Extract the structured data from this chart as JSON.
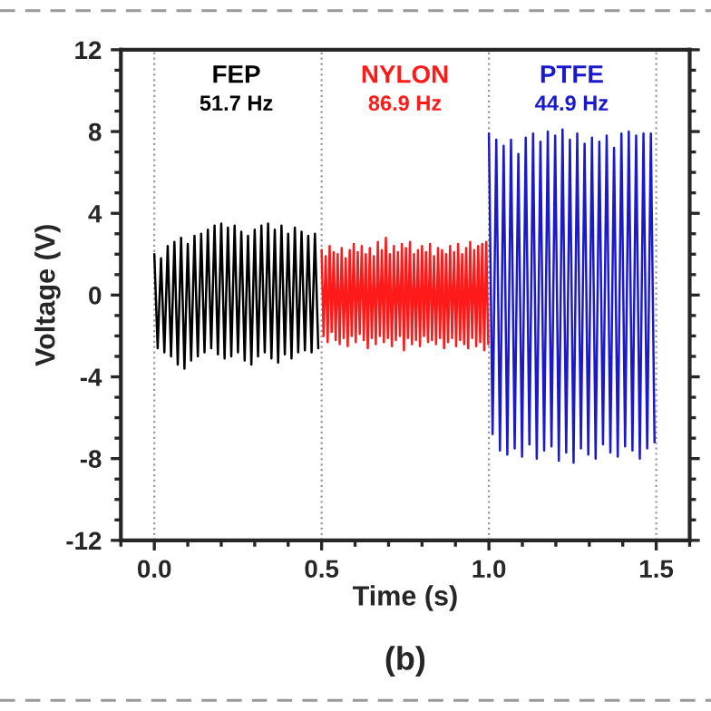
{
  "chart_data": {
    "type": "line",
    "xlabel": "Time (s)",
    "ylabel": "Voltage (V)",
    "xlim": [
      -0.1,
      1.6
    ],
    "xticks": [
      {
        "value": 0,
        "label": "0.0"
      },
      0.5,
      {
        "value": 1,
        "label": "1.0"
      },
      1.5
    ],
    "ylim": [
      -12,
      12
    ],
    "yticks": [
      -12,
      -8,
      -4,
      0,
      4,
      8,
      12
    ],
    "grid": "x",
    "legend": false,
    "line_style": "solid",
    "marker": "none",
    "annotations": [
      "51.7 Hz",
      "86.9 Hz",
      "44.9 Hz",
      "(b)"
    ],
    "series": [
      {
        "name": "FEP",
        "color": "#000000",
        "x": [
          0.0,
          0.01,
          0.02,
          0.03,
          0.04,
          0.05,
          0.06,
          0.07,
          0.08,
          0.09,
          0.1,
          0.11,
          0.12,
          0.13,
          0.14,
          0.15,
          0.16,
          0.17,
          0.18,
          0.19,
          0.2,
          0.21,
          0.22,
          0.23,
          0.24,
          0.25,
          0.26,
          0.27,
          0.28,
          0.29,
          0.3,
          0.31,
          0.32,
          0.33,
          0.34,
          0.35,
          0.36,
          0.37,
          0.38,
          0.39,
          0.4,
          0.41,
          0.42,
          0.43,
          0.44,
          0.45,
          0.46,
          0.47,
          0.48,
          0.49
        ],
        "values": [
          2.0,
          -2.6,
          1.8,
          -2.8,
          2.4,
          -3.0,
          2.6,
          -3.4,
          2.8,
          -3.6,
          2.5,
          -3.2,
          2.9,
          -3.0,
          3.0,
          -2.8,
          3.2,
          -2.6,
          3.4,
          -2.9,
          3.5,
          -3.1,
          3.3,
          -3.0,
          3.4,
          -2.8,
          3.1,
          -3.2,
          2.9,
          -3.4,
          3.2,
          -3.0,
          3.4,
          -2.8,
          3.5,
          -3.1,
          3.2,
          -3.3,
          3.4,
          -2.9,
          3.0,
          -3.1,
          3.3,
          -2.8,
          3.1,
          -2.7,
          2.9,
          -2.8,
          3.0,
          -2.6
        ]
      },
      {
        "name": "NYLON",
        "color": "#ff1a1a",
        "x": [
          0.5,
          0.506,
          0.512,
          0.518,
          0.524,
          0.53,
          0.536,
          0.542,
          0.548,
          0.554,
          0.56,
          0.566,
          0.572,
          0.578,
          0.584,
          0.59,
          0.596,
          0.602,
          0.608,
          0.614,
          0.62,
          0.626,
          0.632,
          0.638,
          0.644,
          0.65,
          0.656,
          0.662,
          0.668,
          0.674,
          0.68,
          0.686,
          0.692,
          0.698,
          0.704,
          0.71,
          0.716,
          0.722,
          0.728,
          0.734,
          0.74,
          0.746,
          0.752,
          0.758,
          0.764,
          0.77,
          0.776,
          0.782,
          0.788,
          0.794,
          0.8,
          0.806,
          0.812,
          0.818,
          0.824,
          0.83,
          0.836,
          0.842,
          0.848,
          0.854,
          0.86,
          0.866,
          0.872,
          0.878,
          0.884,
          0.89,
          0.896,
          0.902,
          0.908,
          0.914,
          0.92,
          0.926,
          0.932,
          0.938,
          0.944,
          0.95,
          0.956,
          0.962,
          0.968,
          0.974,
          0.98,
          0.986,
          0.992,
          0.998
        ],
        "values": [
          2.2,
          -2.0,
          1.9,
          -2.3,
          2.4,
          -1.8,
          2.1,
          -2.2,
          2.0,
          -2.4,
          2.3,
          -2.1,
          1.8,
          -2.5,
          2.2,
          -2.0,
          2.5,
          -2.3,
          2.1,
          -1.9,
          2.4,
          -2.2,
          2.0,
          -2.6,
          2.3,
          -2.1,
          1.9,
          -2.4,
          2.6,
          -2.0,
          2.2,
          -2.3,
          2.8,
          -2.1,
          2.0,
          -2.5,
          2.4,
          -2.2,
          2.1,
          -2.0,
          2.5,
          -2.7,
          2.3,
          -2.1,
          2.6,
          -2.4,
          2.0,
          -2.2,
          2.2,
          -2.5,
          2.4,
          -2.0,
          2.1,
          -2.3,
          2.5,
          -2.2,
          1.9,
          -2.4,
          2.3,
          -2.1,
          2.2,
          -2.6,
          2.0,
          -2.3,
          2.4,
          -2.1,
          2.1,
          -2.5,
          2.5,
          -2.2,
          2.0,
          -2.4,
          2.3,
          -2.6,
          2.6,
          -2.1,
          2.2,
          -2.5,
          2.4,
          -2.3,
          2.5,
          -2.7,
          2.6,
          -2.4
        ]
      },
      {
        "name": "PTFE",
        "color": "#1a1acc",
        "x": [
          1.0,
          1.011,
          1.022,
          1.033,
          1.044,
          1.055,
          1.066,
          1.077,
          1.088,
          1.099,
          1.11,
          1.121,
          1.132,
          1.143,
          1.154,
          1.165,
          1.176,
          1.187,
          1.198,
          1.209,
          1.22,
          1.231,
          1.242,
          1.253,
          1.264,
          1.275,
          1.286,
          1.297,
          1.308,
          1.319,
          1.33,
          1.341,
          1.352,
          1.363,
          1.374,
          1.385,
          1.396,
          1.407,
          1.418,
          1.429,
          1.44,
          1.451,
          1.462,
          1.473,
          1.484,
          1.495
        ],
        "values": [
          7.9,
          -6.8,
          7.6,
          -7.6,
          7.3,
          -7.8,
          7.6,
          -7.5,
          6.9,
          -7.9,
          7.7,
          -7.3,
          7.9,
          -8.0,
          7.5,
          -7.6,
          8.0,
          -7.4,
          7.8,
          -8.1,
          8.1,
          -7.7,
          7.6,
          -8.2,
          7.9,
          -7.5,
          7.4,
          -7.8,
          7.7,
          -8.0,
          7.5,
          -7.3,
          7.8,
          -7.7,
          7.2,
          -7.9,
          7.9,
          -7.4,
          8.0,
          -7.6,
          7.8,
          -8.0,
          7.9,
          -7.5,
          7.9,
          -7.2
        ]
      }
    ]
  }
}
